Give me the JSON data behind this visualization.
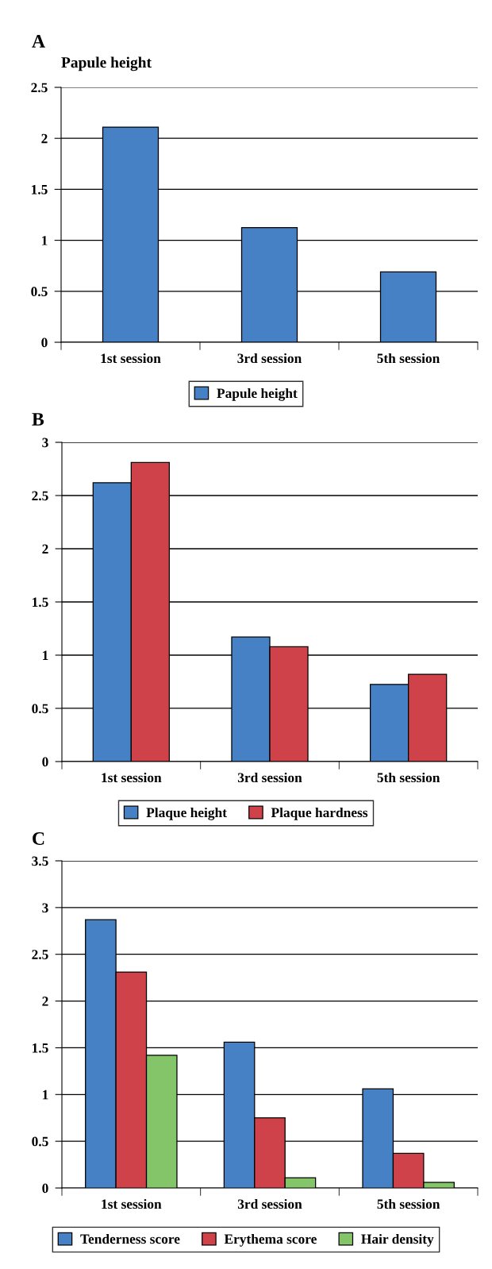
{
  "chart_data": [
    {
      "type": "bar",
      "title": "Papule height",
      "annotations": [
        "A"
      ],
      "categories": [
        "1st session",
        "3rd session",
        "5th session"
      ],
      "series": [
        {
          "name": "Papule height",
          "color": "#4581c4",
          "values": [
            2.11,
            1.125,
            0.69
          ]
        }
      ],
      "ylim": [
        0,
        2.5
      ],
      "yticks": [
        0,
        0.5,
        1,
        1.5,
        2,
        2.5
      ],
      "grid": "y",
      "legend": "bottom"
    },
    {
      "type": "bar",
      "annotations": [
        "B"
      ],
      "categories": [
        "1st session",
        "3rd session",
        "5th session"
      ],
      "series": [
        {
          "name": "Plaque height",
          "color": "#4581c4",
          "values": [
            2.62,
            1.17,
            0.725
          ]
        },
        {
          "name": "Plaque hardness",
          "color": "#d04249",
          "values": [
            2.81,
            1.08,
            0.82
          ]
        }
      ],
      "ylim": [
        0,
        3
      ],
      "yticks": [
        0,
        0.5,
        1,
        1.5,
        2,
        2.5,
        3
      ],
      "grid": "y",
      "legend": "bottom"
    },
    {
      "type": "bar",
      "annotations": [
        "C"
      ],
      "categories": [
        "1st session",
        "3rd session",
        "5th session"
      ],
      "series": [
        {
          "name": "Tenderness score",
          "color": "#4581c4",
          "values": [
            2.87,
            1.56,
            1.06
          ]
        },
        {
          "name": "Erythema score",
          "color": "#d04249",
          "values": [
            2.31,
            0.75,
            0.37
          ]
        },
        {
          "name": "Hair density",
          "color": "#84c569",
          "values": [
            1.42,
            0.11,
            0.06
          ]
        }
      ],
      "ylim": [
        0,
        3.5
      ],
      "yticks": [
        0,
        0.5,
        1,
        1.5,
        2,
        2.5,
        3,
        3.5
      ],
      "grid": "y",
      "legend": "bottom"
    }
  ]
}
